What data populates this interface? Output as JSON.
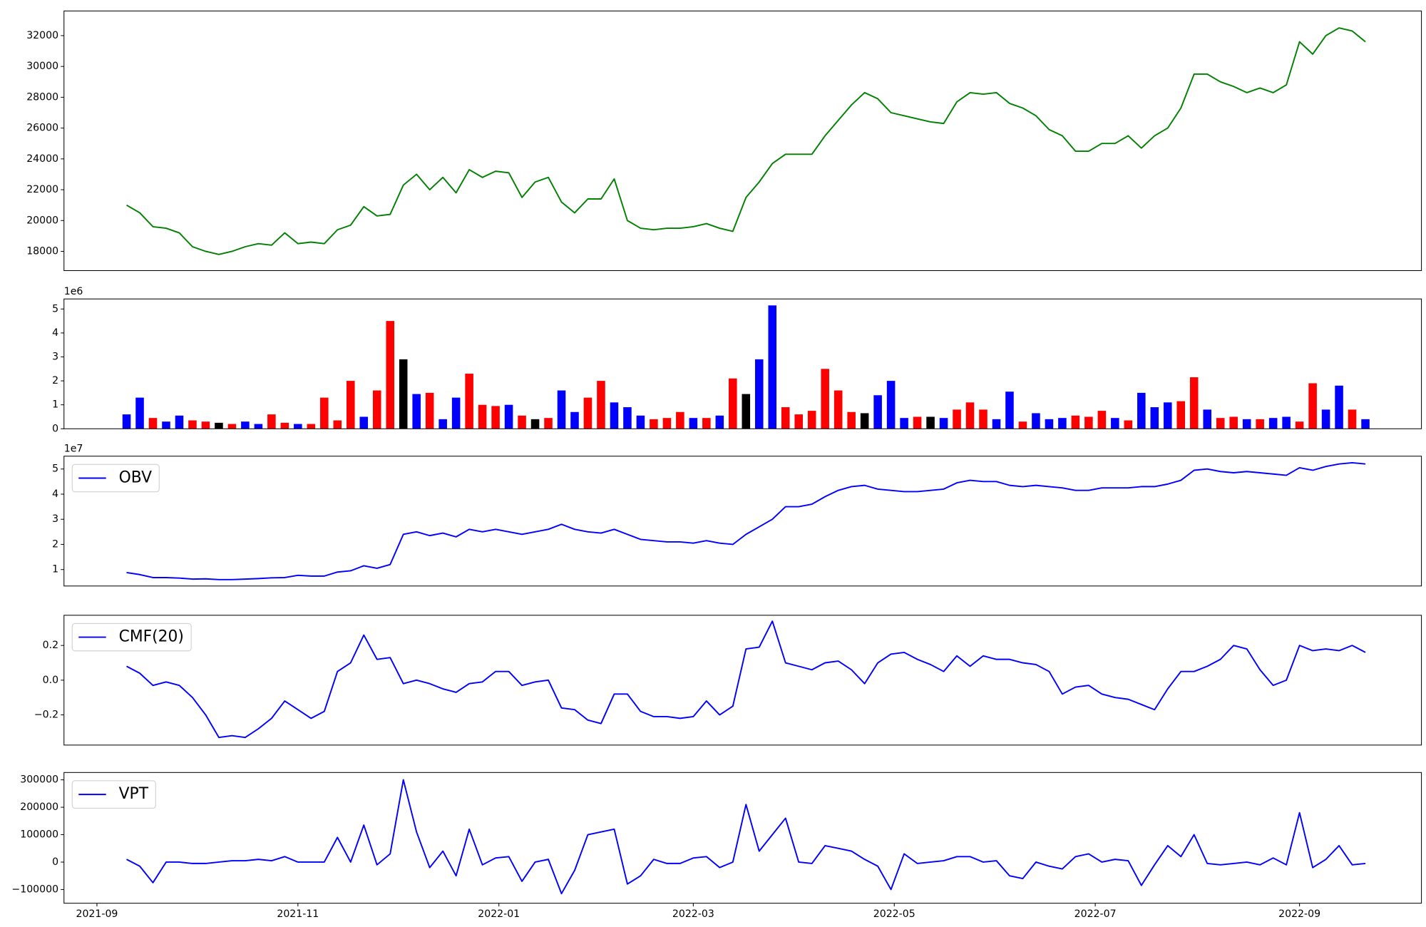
{
  "chart_data": [
    {
      "type": "line",
      "x": [
        9,
        13,
        17,
        21,
        25,
        29,
        33,
        37,
        41,
        45,
        49,
        53,
        57,
        61,
        65,
        69,
        73,
        77,
        81,
        85,
        89,
        93,
        97,
        101,
        105,
        109,
        113,
        117,
        121,
        125,
        129,
        133,
        137,
        141,
        145,
        149,
        153,
        157,
        161,
        165,
        169,
        173,
        177,
        181,
        185,
        189,
        193,
        197,
        201,
        205,
        209,
        213,
        217,
        221,
        225,
        229,
        233,
        237,
        241,
        245,
        249,
        253,
        257,
        261,
        265,
        269,
        273,
        277,
        281,
        285,
        289,
        293,
        297,
        301,
        305,
        309,
        313,
        317,
        321,
        325,
        329,
        333,
        337,
        341,
        345,
        349,
        353,
        357,
        361,
        365,
        369,
        373,
        377,
        381,
        385
      ],
      "values": [
        21000,
        20500,
        19600,
        19500,
        19200,
        18300,
        18000,
        17800,
        18000,
        18300,
        18500,
        18400,
        19200,
        18500,
        18600,
        18500,
        19400,
        19700,
        20900,
        20300,
        20400,
        22300,
        23000,
        22000,
        22800,
        21800,
        23300,
        22800,
        23200,
        23100,
        21500,
        22500,
        22800,
        21200,
        20500,
        21400,
        21400,
        22700,
        20000,
        19500,
        19400,
        19500,
        19500,
        19600,
        19800,
        19500,
        19300,
        21500,
        22500,
        23700,
        24300,
        24300,
        24300,
        25500,
        26500,
        27500,
        28300,
        27900,
        27000,
        26800,
        26600,
        26400,
        26300,
        27700,
        28300,
        28200,
        28300,
        27600,
        27300,
        26800,
        25900,
        25500,
        24500,
        24500,
        25000,
        25000,
        25500,
        24700,
        25500,
        26000,
        27300,
        29500,
        29500,
        29000,
        28700,
        28300,
        28600,
        28300,
        28800,
        31600,
        30800,
        32000,
        32500,
        32300,
        31600
      ],
      "color": "#008000",
      "xlim": [
        -10,
        402
      ],
      "ylim": [
        16750,
        33600
      ],
      "yticks": [
        18000,
        20000,
        22000,
        24000,
        26000,
        28000,
        30000,
        32000
      ]
    },
    {
      "type": "bar",
      "offset_label": "1e6",
      "x": [
        9,
        13,
        17,
        21,
        25,
        29,
        33,
        37,
        41,
        45,
        49,
        53,
        57,
        61,
        65,
        69,
        73,
        77,
        81,
        85,
        89,
        93,
        97,
        101,
        105,
        109,
        113,
        117,
        121,
        125,
        129,
        133,
        137,
        141,
        145,
        149,
        153,
        157,
        161,
        165,
        169,
        173,
        177,
        181,
        185,
        189,
        193,
        197,
        201,
        205,
        209,
        213,
        217,
        221,
        225,
        229,
        233,
        237,
        241,
        245,
        249,
        253,
        257,
        261,
        265,
        269,
        273,
        277,
        281,
        285,
        289,
        293,
        297,
        301,
        305,
        309,
        313,
        317,
        321,
        325,
        329,
        333,
        337,
        341,
        345,
        349,
        353,
        357,
        361,
        365,
        369,
        373,
        377,
        381,
        385
      ],
      "values": [
        0.6,
        1.3,
        0.45,
        0.3,
        0.55,
        0.35,
        0.3,
        0.25,
        0.2,
        0.3,
        0.2,
        0.6,
        0.25,
        0.2,
        0.2,
        1.3,
        0.35,
        2.0,
        0.5,
        1.6,
        4.5,
        2.9,
        1.45,
        1.5,
        0.4,
        1.3,
        2.3,
        1.0,
        0.95,
        1.0,
        0.55,
        0.4,
        0.45,
        1.6,
        0.7,
        1.3,
        2.0,
        1.1,
        0.9,
        0.55,
        0.4,
        0.45,
        0.7,
        0.45,
        0.45,
        0.55,
        2.1,
        1.45,
        2.9,
        5.15,
        0.9,
        0.6,
        0.75,
        2.5,
        1.6,
        0.7,
        0.65,
        1.4,
        2.0,
        0.45,
        0.5,
        0.5,
        0.45,
        0.8,
        1.1,
        0.8,
        0.4,
        1.55,
        0.3,
        0.65,
        0.4,
        0.45,
        0.55,
        0.5,
        0.75,
        0.45,
        0.35,
        1.5,
        0.9,
        1.1,
        1.15,
        2.15,
        0.8,
        0.45,
        0.5,
        0.4,
        0.4,
        0.45,
        0.5,
        0.3,
        1.9,
        0.8,
        1.8,
        0.8,
        0.4
      ],
      "colors": [
        "blue",
        "blue",
        "red",
        "blue",
        "blue",
        "red",
        "red",
        "black",
        "red",
        "blue",
        "blue",
        "red",
        "red",
        "blue",
        "red",
        "red",
        "red",
        "red",
        "blue",
        "red",
        "red",
        "black",
        "blue",
        "red",
        "blue",
        "blue",
        "red",
        "red",
        "red",
        "blue",
        "red",
        "black",
        "red",
        "blue",
        "blue",
        "red",
        "red",
        "blue",
        "blue",
        "blue",
        "red",
        "red",
        "red",
        "blue",
        "red",
        "blue",
        "red",
        "black",
        "blue",
        "blue",
        "red",
        "red",
        "red",
        "red",
        "red",
        "red",
        "black",
        "blue",
        "blue",
        "blue",
        "red",
        "black",
        "blue",
        "red",
        "red",
        "red",
        "blue",
        "blue",
        "red",
        "blue",
        "blue",
        "blue",
        "red",
        "red",
        "red",
        "blue",
        "red",
        "blue",
        "blue",
        "blue",
        "red",
        "red",
        "blue",
        "red",
        "red",
        "blue",
        "red",
        "blue",
        "blue",
        "red",
        "red",
        "blue",
        "blue",
        "red",
        "blue"
      ],
      "xlim": [
        -10,
        402
      ],
      "ylim": [
        0,
        5.42
      ],
      "yticks": [
        0,
        1,
        2,
        3,
        4,
        5
      ]
    },
    {
      "type": "line",
      "offset_label": "1e7",
      "legend": "upper left",
      "x": [
        9,
        13,
        17,
        21,
        25,
        29,
        33,
        37,
        41,
        45,
        49,
        53,
        57,
        61,
        65,
        69,
        73,
        77,
        81,
        85,
        89,
        93,
        97,
        101,
        105,
        109,
        113,
        117,
        121,
        125,
        129,
        133,
        137,
        141,
        145,
        149,
        153,
        157,
        161,
        165,
        169,
        173,
        177,
        181,
        185,
        189,
        193,
        197,
        201,
        205,
        209,
        213,
        217,
        221,
        225,
        229,
        233,
        237,
        241,
        245,
        249,
        253,
        257,
        261,
        265,
        269,
        273,
        277,
        281,
        285,
        289,
        293,
        297,
        301,
        305,
        309,
        313,
        317,
        321,
        325,
        329,
        333,
        337,
        341,
        345,
        349,
        353,
        357,
        361,
        365,
        369,
        373,
        377,
        381,
        385
      ],
      "series": [
        {
          "name": "OBV",
          "color": "#0000ff",
          "values": [
            0.88,
            0.8,
            0.68,
            0.68,
            0.66,
            0.62,
            0.63,
            0.6,
            0.6,
            0.62,
            0.64,
            0.67,
            0.68,
            0.77,
            0.74,
            0.74,
            0.9,
            0.95,
            1.15,
            1.05,
            1.2,
            2.4,
            2.5,
            2.35,
            2.45,
            2.3,
            2.6,
            2.5,
            2.6,
            2.5,
            2.4,
            2.5,
            2.6,
            2.8,
            2.6,
            2.5,
            2.45,
            2.6,
            2.4,
            2.2,
            2.15,
            2.1,
            2.1,
            2.05,
            2.15,
            2.05,
            2.0,
            2.4,
            2.7,
            3.0,
            3.5,
            3.5,
            3.6,
            3.9,
            4.15,
            4.3,
            4.35,
            4.2,
            4.15,
            4.1,
            4.1,
            4.15,
            4.2,
            4.45,
            4.55,
            4.5,
            4.5,
            4.35,
            4.3,
            4.35,
            4.3,
            4.25,
            4.15,
            4.15,
            4.25,
            4.25,
            4.25,
            4.3,
            4.3,
            4.4,
            4.55,
            4.95,
            5.0,
            4.9,
            4.85,
            4.9,
            4.85,
            4.8,
            4.75,
            5.05,
            4.95,
            5.1,
            5.2,
            5.25,
            5.2
          ]
        }
      ],
      "xlim": [
        -10,
        402
      ],
      "ylim": [
        0.345,
        5.51
      ],
      "yticks": [
        1,
        2,
        3,
        4,
        5
      ]
    },
    {
      "type": "line",
      "legend": "upper left",
      "x": [
        9,
        13,
        17,
        21,
        25,
        29,
        33,
        37,
        41,
        45,
        49,
        53,
        57,
        61,
        65,
        69,
        73,
        77,
        81,
        85,
        89,
        93,
        97,
        101,
        105,
        109,
        113,
        117,
        121,
        125,
        129,
        133,
        137,
        141,
        145,
        149,
        153,
        157,
        161,
        165,
        169,
        173,
        177,
        181,
        185,
        189,
        193,
        197,
        201,
        205,
        209,
        213,
        217,
        221,
        225,
        229,
        233,
        237,
        241,
        245,
        249,
        253,
        257,
        261,
        265,
        269,
        273,
        277,
        281,
        285,
        289,
        293,
        297,
        301,
        305,
        309,
        313,
        317,
        321,
        325,
        329,
        333,
        337,
        341,
        345,
        349,
        353,
        357,
        361,
        365,
        369,
        373,
        377,
        381,
        385
      ],
      "series": [
        {
          "name": "CMF(20)",
          "color": "#0000ff",
          "values": [
            0.08,
            0.04,
            -0.03,
            -0.01,
            -0.03,
            -0.1,
            -0.2,
            -0.33,
            -0.32,
            -0.33,
            -0.28,
            -0.22,
            -0.12,
            -0.17,
            -0.22,
            -0.18,
            0.05,
            0.1,
            0.26,
            0.12,
            0.13,
            -0.02,
            0,
            -0.02,
            -0.05,
            -0.07,
            -0.02,
            -0.01,
            0.05,
            0.05,
            -0.03,
            -0.01,
            0,
            -0.16,
            -0.17,
            -0.23,
            -0.25,
            -0.08,
            -0.08,
            -0.18,
            -0.21,
            -0.21,
            -0.22,
            -0.21,
            -0.12,
            -0.2,
            -0.15,
            0.18,
            0.19,
            0.34,
            0.1,
            0.08,
            0.06,
            0.1,
            0.11,
            0.06,
            -0.02,
            0.1,
            0.15,
            0.16,
            0.12,
            0.09,
            0.05,
            0.14,
            0.08,
            0.14,
            0.12,
            0.12,
            0.1,
            0.09,
            0.05,
            -0.08,
            -0.04,
            -0.03,
            -0.08,
            -0.1,
            -0.11,
            -0.14,
            -0.17,
            -0.05,
            0.05,
            0.05,
            0.08,
            0.12,
            0.2,
            0.18,
            0.06,
            -0.03,
            0,
            0.2,
            0.17,
            0.18,
            0.17,
            0.2,
            0.16
          ]
        }
      ],
      "xlim": [
        -10,
        402
      ],
      "ylim": [
        -0.374,
        0.374
      ],
      "yticks": [
        {
          "value": -0.2,
          "label": "−0.2"
        },
        {
          "value": 0,
          "label": "0.0"
        },
        0.2
      ]
    },
    {
      "type": "line",
      "legend": "upper left",
      "x": [
        9,
        13,
        17,
        21,
        25,
        29,
        33,
        37,
        41,
        45,
        49,
        53,
        57,
        61,
        65,
        69,
        73,
        77,
        81,
        85,
        89,
        93,
        97,
        101,
        105,
        109,
        113,
        117,
        121,
        125,
        129,
        133,
        137,
        141,
        145,
        149,
        153,
        157,
        161,
        165,
        169,
        173,
        177,
        181,
        185,
        189,
        193,
        197,
        201,
        205,
        209,
        213,
        217,
        221,
        225,
        229,
        233,
        237,
        241,
        245,
        249,
        253,
        257,
        261,
        265,
        269,
        273,
        277,
        281,
        285,
        289,
        293,
        297,
        301,
        305,
        309,
        313,
        317,
        321,
        325,
        329,
        333,
        337,
        341,
        345,
        349,
        353,
        357,
        361,
        365,
        369,
        373,
        377,
        381,
        385
      ],
      "series": [
        {
          "name": "VPT",
          "color": "#0000ff",
          "values": [
            10000,
            -15000,
            -75000,
            0,
            0,
            -5000,
            -5000,
            0,
            5000,
            5000,
            10000,
            5000,
            20000,
            0,
            0,
            0,
            90000,
            0,
            135000,
            -10000,
            30000,
            300000,
            110000,
            -20000,
            40000,
            -50000,
            120000,
            -10000,
            15000,
            20000,
            -70000,
            0,
            10000,
            -115000,
            -30000,
            100000,
            110000,
            120000,
            -80000,
            -50000,
            10000,
            -5000,
            -5000,
            15000,
            20000,
            -20000,
            0,
            210000,
            40000,
            100000,
            160000,
            0,
            -5000,
            60000,
            50000,
            40000,
            10000,
            -15000,
            -100000,
            30000,
            -5000,
            0,
            5000,
            20000,
            20000,
            0,
            5000,
            -50000,
            -60000,
            0,
            -15000,
            -25000,
            20000,
            30000,
            0,
            10000,
            5000,
            -85000,
            -10000,
            60000,
            20000,
            100000,
            -5000,
            -10000,
            -5000,
            0,
            -10000,
            15000,
            -10000,
            180000,
            -20000,
            10000,
            60000,
            -10000,
            -5000
          ]
        }
      ],
      "xlim": [
        -10,
        402
      ],
      "ylim": [
        -150000,
        326700
      ],
      "yticks": [
        {
          "value": -100000,
          "label": "−100000"
        },
        0,
        100000,
        200000,
        300000
      ],
      "xticks": [
        {
          "value": 0,
          "label": "2021-09"
        },
        {
          "value": 61,
          "label": "2021-11"
        },
        {
          "value": 122,
          "label": "2022-01"
        },
        {
          "value": 181,
          "label": "2022-03"
        },
        {
          "value": 242,
          "label": "2022-05"
        },
        {
          "value": 303,
          "label": "2022-07"
        },
        {
          "value": 365,
          "label": "2022-09"
        }
      ]
    }
  ]
}
